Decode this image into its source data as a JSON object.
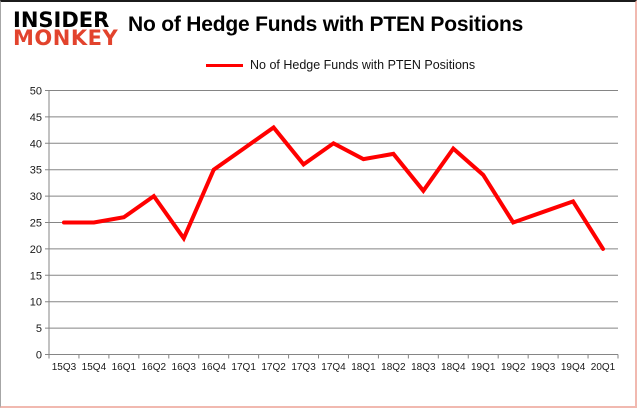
{
  "brand": {
    "line1": "INSIDER",
    "line2": "MONKEY"
  },
  "header": {
    "title": "No of Hedge Funds with PTEN Positions"
  },
  "legend": {
    "label": "No of Hedge Funds with PTEN Positions"
  },
  "colors": {
    "line": "#ff0000",
    "grid": "#858585",
    "text": "#1a1a1a",
    "logo_black": "#000000",
    "logo_red": "#e2432d"
  },
  "chart_data": {
    "type": "line",
    "title": "No of Hedge Funds with PTEN Positions",
    "categories": [
      "15Q3",
      "15Q4",
      "16Q1",
      "16Q2",
      "16Q3",
      "16Q4",
      "17Q1",
      "17Q2",
      "17Q3",
      "17Q4",
      "18Q1",
      "18Q2",
      "18Q3",
      "18Q4",
      "19Q1",
      "19Q2",
      "19Q3",
      "19Q4",
      "20Q1"
    ],
    "series": [
      {
        "name": "No of Hedge Funds with PTEN Positions",
        "values": [
          25,
          25,
          26,
          30,
          22,
          35,
          39,
          43,
          36,
          40,
          37,
          38,
          31,
          39,
          34,
          25,
          27,
          29,
          20
        ]
      }
    ],
    "xlabel": "",
    "ylabel": "",
    "ylim": [
      0,
      50
    ],
    "yticks": [
      0,
      5,
      10,
      15,
      20,
      25,
      30,
      35,
      40,
      45,
      50
    ],
    "grid": true,
    "legend_position": "top"
  }
}
